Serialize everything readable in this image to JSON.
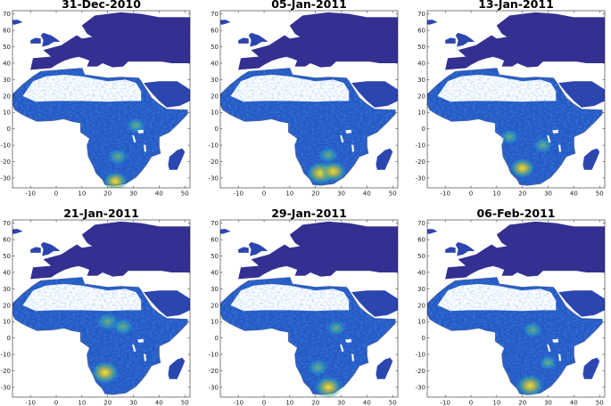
{
  "chart_data": [
    {
      "type": "heatmap",
      "title": "31-Dec-2010",
      "xlim": [
        -17,
        52
      ],
      "ylim": [
        -36,
        72
      ],
      "x_ticks": [
        "-10",
        "0",
        "10",
        "20",
        "30",
        "40",
        "50"
      ],
      "y_ticks": [
        "70",
        "60",
        "50",
        "40",
        "30",
        "20",
        "10",
        "0",
        "-10",
        "-20",
        "-30"
      ],
      "hotspots": [
        {
          "lon": 23,
          "lat": -32,
          "intensity": 0.75
        },
        {
          "lon": 24,
          "lat": -17,
          "intensity": 0.6
        },
        {
          "lon": 31,
          "lat": 2,
          "intensity": 0.5
        }
      ]
    },
    {
      "type": "heatmap",
      "title": "05-Jan-2011",
      "xlim": [
        -17,
        52
      ],
      "ylim": [
        -36,
        72
      ],
      "x_ticks": [
        "-10",
        "0",
        "10",
        "20",
        "30",
        "40",
        "50"
      ],
      "y_ticks": [
        "70",
        "60",
        "50",
        "40",
        "30",
        "20",
        "10",
        "0",
        "-10",
        "-20",
        "-30"
      ],
      "hotspots": [
        {
          "lon": 22,
          "lat": -27,
          "intensity": 1.0
        },
        {
          "lon": 27,
          "lat": -26,
          "intensity": 0.85
        },
        {
          "lon": 25,
          "lat": -16,
          "intensity": 0.55
        }
      ]
    },
    {
      "type": "heatmap",
      "title": "13-Jan-2011",
      "xlim": [
        -17,
        52
      ],
      "ylim": [
        -36,
        72
      ],
      "x_ticks": [
        "-10",
        "0",
        "10",
        "20",
        "30",
        "40",
        "50"
      ],
      "y_ticks": [
        "70",
        "60",
        "50",
        "40",
        "30",
        "20",
        "10",
        "0",
        "-10",
        "-20",
        "-30"
      ],
      "hotspots": [
        {
          "lon": 20,
          "lat": -24,
          "intensity": 0.8
        },
        {
          "lon": 28,
          "lat": -10,
          "intensity": 0.55
        },
        {
          "lon": 15,
          "lat": -5,
          "intensity": 0.45
        }
      ]
    },
    {
      "type": "heatmap",
      "title": "21-Jan-2011",
      "xlim": [
        -17,
        52
      ],
      "ylim": [
        -36,
        72
      ],
      "x_ticks": [
        "-10",
        "0",
        "10",
        "20",
        "30",
        "40",
        "50"
      ],
      "y_ticks": [
        "70",
        "60",
        "50",
        "40",
        "30",
        "20",
        "10",
        "0",
        "-10",
        "-20",
        "-30"
      ],
      "hotspots": [
        {
          "lon": 19,
          "lat": -21,
          "intensity": 1.0
        },
        {
          "lon": 20,
          "lat": 10,
          "intensity": 0.7
        },
        {
          "lon": 26,
          "lat": 7,
          "intensity": 0.6
        }
      ]
    },
    {
      "type": "heatmap",
      "title": "29-Jan-2011",
      "xlim": [
        -17,
        52
      ],
      "ylim": [
        -36,
        72
      ],
      "x_ticks": [
        "-10",
        "0",
        "10",
        "20",
        "30",
        "40",
        "50"
      ],
      "y_ticks": [
        "70",
        "60",
        "50",
        "40",
        "30",
        "20",
        "10",
        "0",
        "-10",
        "-20",
        "-30"
      ],
      "hotspots": [
        {
          "lon": 25,
          "lat": -30,
          "intensity": 0.95
        },
        {
          "lon": 21,
          "lat": -18,
          "intensity": 0.6
        },
        {
          "lon": 28,
          "lat": 6,
          "intensity": 0.5
        }
      ]
    },
    {
      "type": "heatmap",
      "title": "06-Feb-2011",
      "xlim": [
        -17,
        52
      ],
      "ylim": [
        -36,
        72
      ],
      "x_ticks": [
        "-10",
        "0",
        "10",
        "20",
        "30",
        "40",
        "50"
      ],
      "y_ticks": [
        "70",
        "60",
        "50",
        "40",
        "30",
        "20",
        "10",
        "0",
        "-10",
        "-20",
        "-30"
      ],
      "hotspots": [
        {
          "lon": 23,
          "lat": -29,
          "intensity": 0.95
        },
        {
          "lon": 24,
          "lat": 5,
          "intensity": 0.55
        },
        {
          "lon": 30,
          "lat": -15,
          "intensity": 0.45
        }
      ]
    }
  ],
  "colors": {
    "background": "#ffffff",
    "sea_outline": "#4a5a8a",
    "colormap": [
      "#352a87",
      "#2c46b0",
      "#1e6ad6",
      "#1a8fd4",
      "#22a8b8",
      "#3bb88f",
      "#8fbf5a",
      "#d0b935",
      "#f3d22a",
      "#f9fb0e"
    ]
  }
}
